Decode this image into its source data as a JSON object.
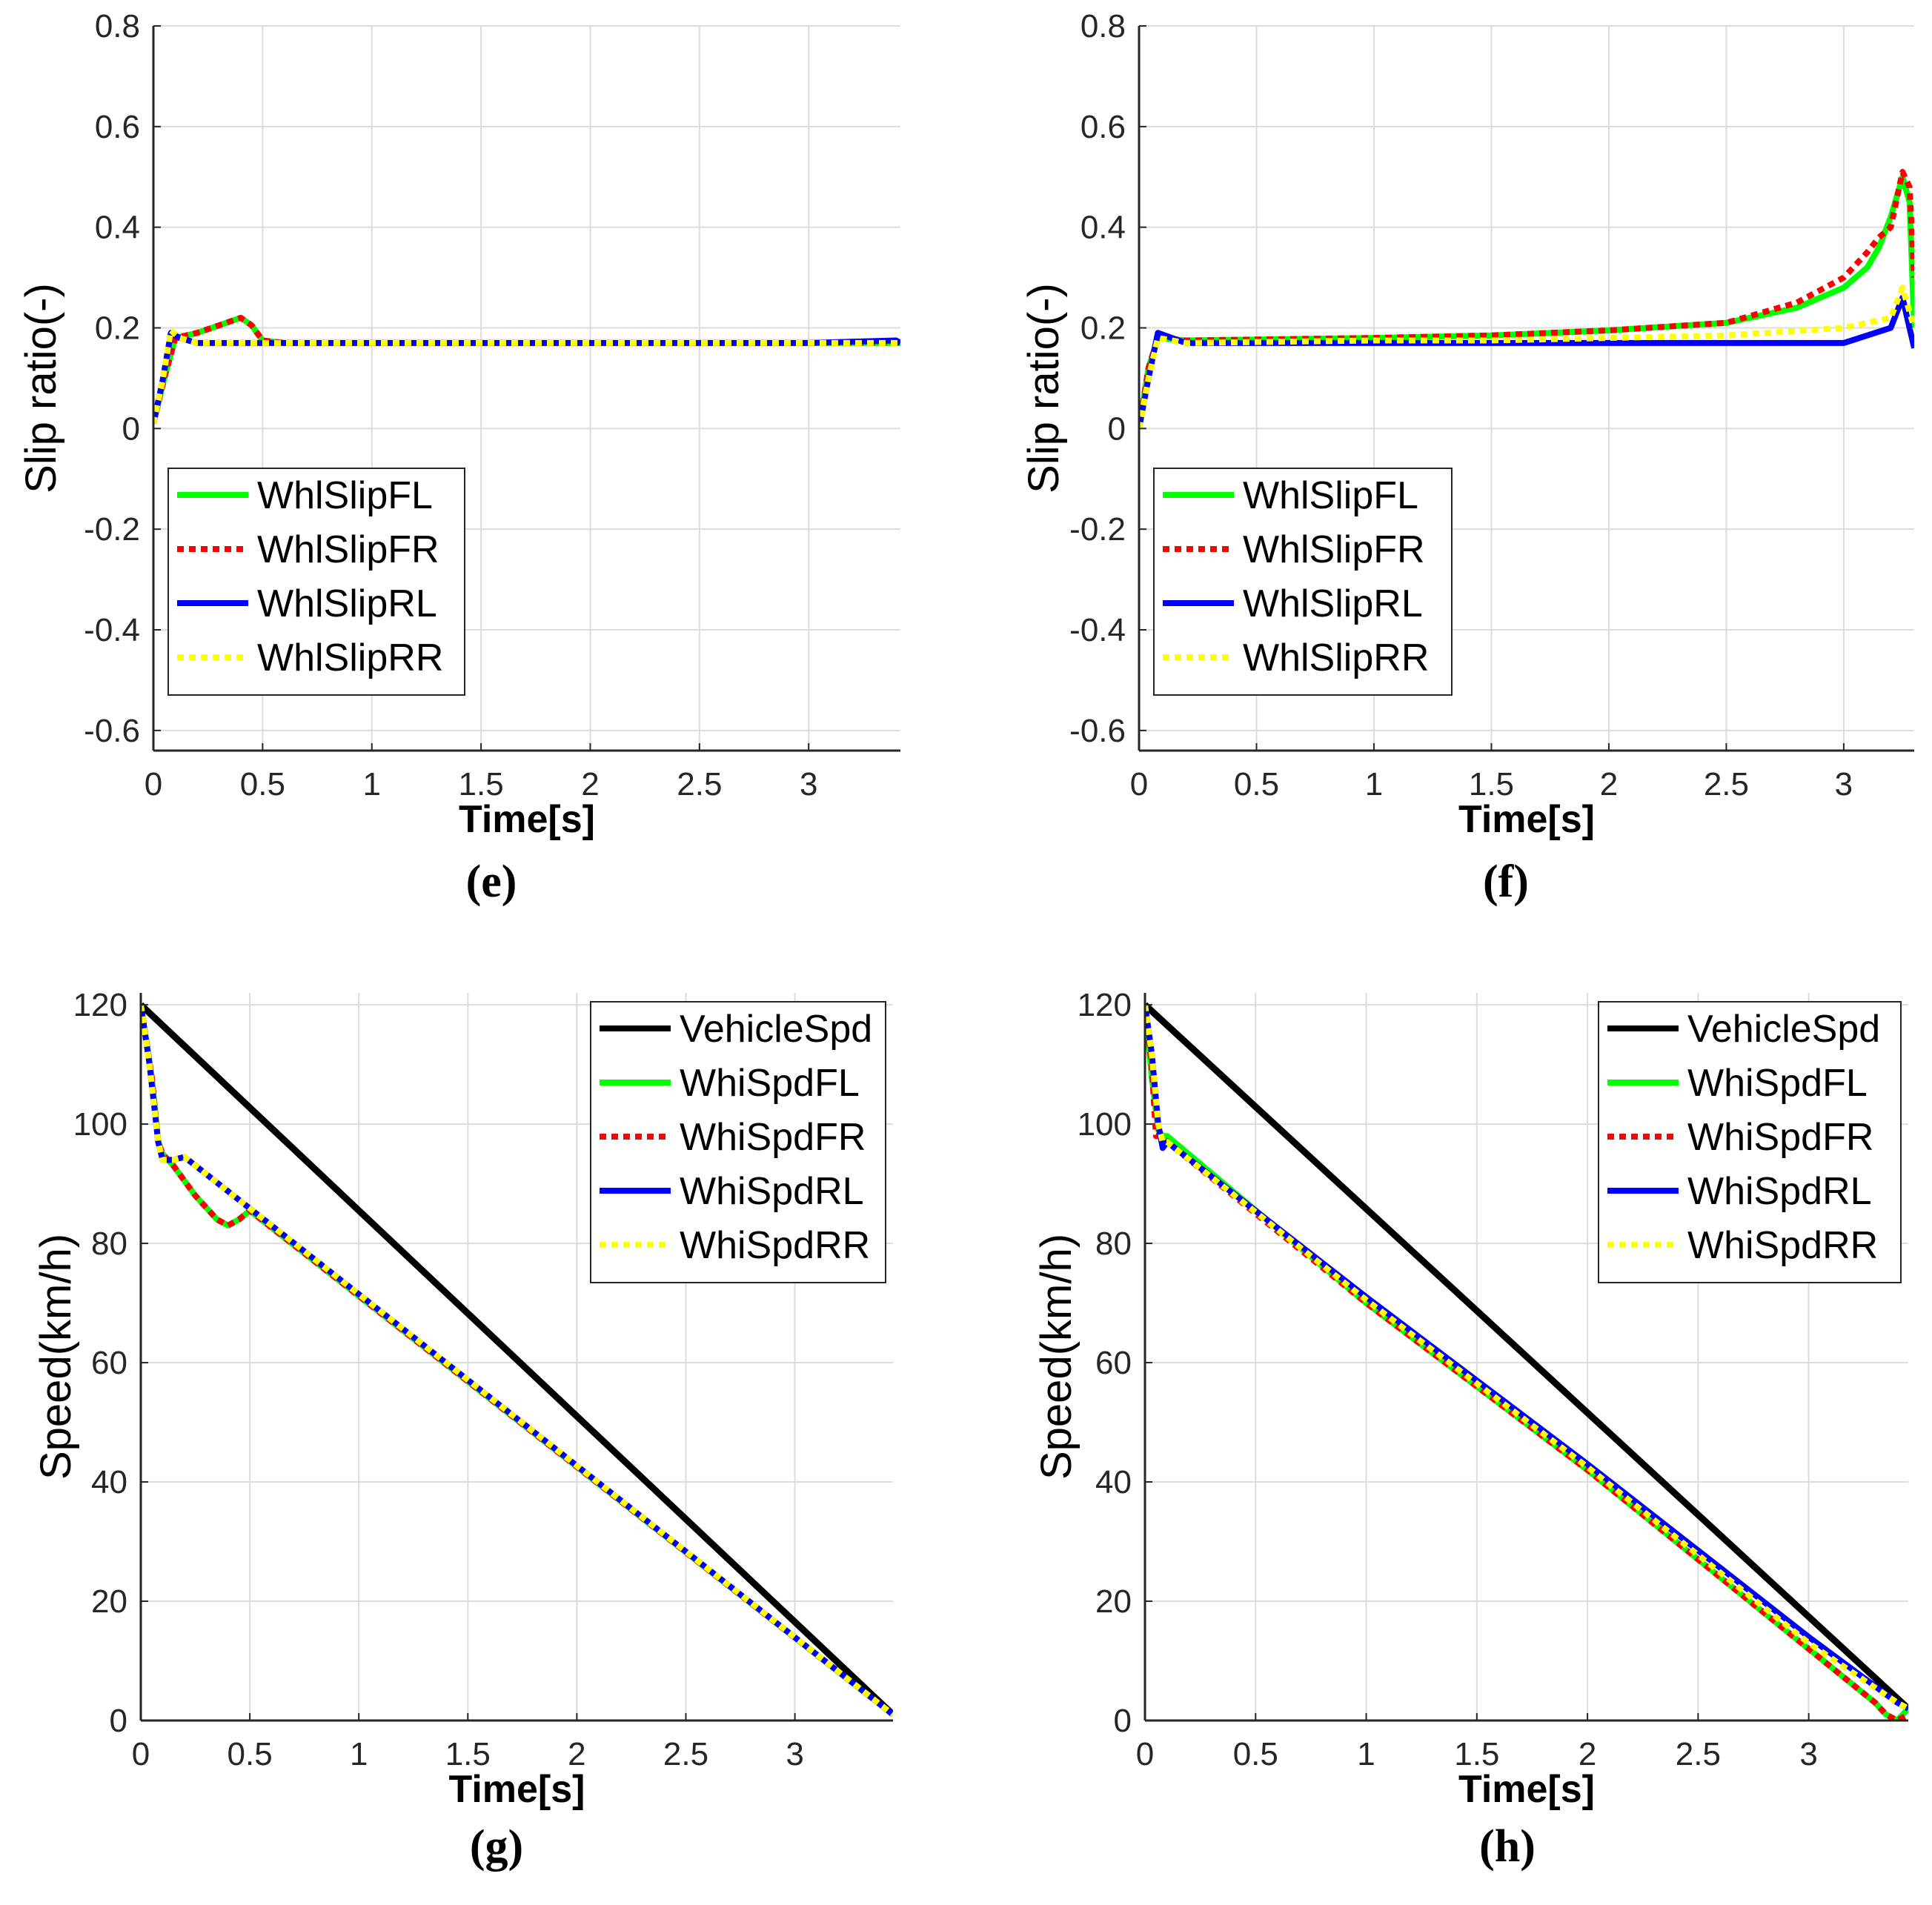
{
  "colors": {
    "FL": "#00ff00",
    "FR": "#ff0000",
    "RL": "#0000ff",
    "RR": "#ffff00",
    "Vehicle": "#000000"
  },
  "chart_data": [
    {
      "id": "e",
      "type": "line",
      "caption": "(e)",
      "xlabel": "Time[s]",
      "ylabel": "Slip ratio(-)",
      "xlim": [
        0,
        3.42
      ],
      "ylim": [
        -0.64,
        0.8
      ],
      "xticks": [
        0,
        0.5,
        1,
        1.5,
        2,
        2.5,
        3
      ],
      "xtick_labels": [
        "0",
        "0.5",
        "1",
        "1.5",
        "2",
        "2.5",
        "3"
      ],
      "yticks": [
        -0.6,
        -0.4,
        -0.2,
        0,
        0.2,
        0.4,
        0.6,
        0.8
      ],
      "ytick_labels": [
        "-0.6",
        "-0.4",
        "-0.2",
        "0",
        "0.2",
        "0.4",
        "0.6",
        "0.8"
      ],
      "legend_position": "bottom-left",
      "series": [
        {
          "name": "WhlSlipFL",
          "key": "FL",
          "style": "solid",
          "x": [
            0,
            0.05,
            0.1,
            0.2,
            0.3,
            0.4,
            0.45,
            0.5,
            0.6,
            1,
            2,
            3,
            3.42
          ],
          "y": [
            0.01,
            0.1,
            0.18,
            0.19,
            0.205,
            0.22,
            0.205,
            0.175,
            0.17,
            0.17,
            0.17,
            0.17,
            0.17
          ]
        },
        {
          "name": "WhlSlipFR",
          "key": "FR",
          "style": "dotted",
          "x": [
            0,
            0.05,
            0.1,
            0.2,
            0.3,
            0.4,
            0.45,
            0.5,
            0.6,
            1,
            2,
            3,
            3.42
          ],
          "y": [
            0.01,
            0.1,
            0.18,
            0.19,
            0.205,
            0.22,
            0.205,
            0.175,
            0.17,
            0.17,
            0.17,
            0.17,
            0.17
          ]
        },
        {
          "name": "WhlSlipRL",
          "key": "RL",
          "style": "solid",
          "x": [
            0,
            0.04,
            0.08,
            0.12,
            0.2,
            0.3,
            1,
            2,
            3,
            3.4,
            3.42
          ],
          "y": [
            0.01,
            0.09,
            0.19,
            0.18,
            0.17,
            0.17,
            0.17,
            0.17,
            0.17,
            0.175,
            0.17
          ]
        },
        {
          "name": "WhlSlipRR",
          "key": "RR",
          "style": "dotted",
          "x": [
            0,
            0.04,
            0.08,
            0.12,
            0.2,
            0.3,
            1,
            2,
            3,
            3.42
          ],
          "y": [
            0.01,
            0.09,
            0.195,
            0.18,
            0.17,
            0.17,
            0.17,
            0.17,
            0.17,
            0.17
          ]
        }
      ]
    },
    {
      "id": "f",
      "type": "line",
      "caption": "(f)",
      "xlabel": "Time[s]",
      "ylabel": "Slip ratio(-)",
      "xlim": [
        0,
        3.3
      ],
      "ylim": [
        -0.64,
        0.8
      ],
      "xticks": [
        0,
        0.5,
        1,
        1.5,
        2,
        2.5,
        3
      ],
      "xtick_labels": [
        "0",
        "0.5",
        "1",
        "1.5",
        "2",
        "2.5",
        "3"
      ],
      "yticks": [
        -0.6,
        -0.4,
        -0.2,
        0,
        0.2,
        0.4,
        0.6,
        0.8
      ],
      "ytick_labels": [
        "-0.6",
        "-0.4",
        "-0.2",
        "0",
        "0.2",
        "0.4",
        "0.6",
        "0.8"
      ],
      "legend_position": "bottom-left",
      "series": [
        {
          "name": "WhlSlipFL",
          "key": "FL",
          "style": "solid",
          "x": [
            0,
            0.04,
            0.08,
            0.2,
            1,
            1.5,
            2,
            2.5,
            2.8,
            3,
            3.1,
            3.15,
            3.2,
            3.25,
            3.28,
            3.3
          ],
          "y": [
            0,
            0.12,
            0.18,
            0.175,
            0.18,
            0.185,
            0.195,
            0.21,
            0.24,
            0.28,
            0.32,
            0.36,
            0.42,
            0.5,
            0.45,
            0.2
          ]
        },
        {
          "name": "WhlSlipFR",
          "key": "FR",
          "style": "dotted",
          "x": [
            0,
            0.04,
            0.08,
            0.2,
            1,
            1.5,
            2,
            2.5,
            2.8,
            3,
            3.1,
            3.15,
            3.2,
            3.25,
            3.28,
            3.3
          ],
          "y": [
            0,
            0.12,
            0.18,
            0.175,
            0.18,
            0.185,
            0.195,
            0.21,
            0.25,
            0.3,
            0.35,
            0.38,
            0.4,
            0.51,
            0.48,
            0.3
          ]
        },
        {
          "name": "WhlSlipRL",
          "key": "RL",
          "style": "solid",
          "x": [
            0,
            0.04,
            0.08,
            0.2,
            1,
            1.5,
            2,
            2.5,
            3,
            3.2,
            3.25,
            3.3
          ],
          "y": [
            0,
            0.1,
            0.19,
            0.17,
            0.17,
            0.17,
            0.17,
            0.17,
            0.17,
            0.2,
            0.26,
            0.16
          ]
        },
        {
          "name": "WhlSlipRR",
          "key": "RR",
          "style": "dotted",
          "x": [
            0,
            0.04,
            0.08,
            0.2,
            1,
            1.5,
            2,
            2.5,
            3,
            3.2,
            3.25,
            3.3
          ],
          "y": [
            0,
            0.1,
            0.18,
            0.17,
            0.175,
            0.175,
            0.18,
            0.185,
            0.2,
            0.22,
            0.28,
            0.2
          ]
        }
      ]
    },
    {
      "id": "g",
      "type": "line",
      "caption": "(g)",
      "xlabel": "Time[s]",
      "ylabel": "Speed(km/h)",
      "xlim": [
        0,
        3.45
      ],
      "ylim": [
        0,
        122
      ],
      "xticks": [
        0,
        0.5,
        1,
        1.5,
        2,
        2.5,
        3
      ],
      "xtick_labels": [
        "0",
        "0.5",
        "1",
        "1.5",
        "2",
        "2.5",
        "3"
      ],
      "yticks": [
        0,
        20,
        40,
        60,
        80,
        100,
        120
      ],
      "ytick_labels": [
        "0",
        "20",
        "40",
        "60",
        "80",
        "100",
        "120"
      ],
      "legend_position": "top-right",
      "series": [
        {
          "name": "VehicleSpd",
          "key": "Vehicle",
          "style": "solid",
          "x": [
            0,
            3.45
          ],
          "y": [
            120,
            1
          ]
        },
        {
          "name": "WhiSpdFL",
          "key": "FL",
          "style": "solid",
          "x": [
            0,
            0.05,
            0.08,
            0.1,
            0.15,
            0.25,
            0.35,
            0.4,
            0.45,
            0.5,
            3.45
          ],
          "y": [
            120,
            108,
            97,
            95,
            93,
            88,
            84,
            83,
            84,
            85.5,
            1
          ]
        },
        {
          "name": "WhiSpdFR",
          "key": "FR",
          "style": "dotted",
          "x": [
            0,
            0.05,
            0.08,
            0.1,
            0.15,
            0.25,
            0.35,
            0.4,
            0.45,
            0.5,
            3.45
          ],
          "y": [
            120,
            108,
            97,
            95,
            93,
            88,
            84,
            83,
            84,
            85.5,
            1
          ]
        },
        {
          "name": "WhiSpdRL",
          "key": "RL",
          "style": "solid",
          "x": [
            0,
            0.04,
            0.08,
            0.1,
            0.15,
            0.2,
            3.45
          ],
          "y": [
            120,
            110,
            97,
            94,
            94,
            94.5,
            1
          ]
        },
        {
          "name": "WhiSpdRR",
          "key": "RR",
          "style": "dotted",
          "x": [
            0,
            0.04,
            0.08,
            0.1,
            0.15,
            0.2,
            3.45
          ],
          "y": [
            120,
            110,
            97,
            94,
            94,
            94.5,
            1
          ]
        }
      ]
    },
    {
      "id": "h",
      "type": "line",
      "caption": "(h)",
      "xlabel": "Time[s]",
      "ylabel": "Speed(km/h)",
      "xlim": [
        0,
        3.45
      ],
      "ylim": [
        0,
        122
      ],
      "xticks": [
        0,
        0.5,
        1,
        1.5,
        2,
        2.5,
        3
      ],
      "xtick_labels": [
        "0",
        "0.5",
        "1",
        "1.5",
        "2",
        "2.5",
        "3"
      ],
      "yticks": [
        0,
        20,
        40,
        60,
        80,
        100,
        120
      ],
      "ytick_labels": [
        "0",
        "20",
        "40",
        "60",
        "80",
        "100",
        "120"
      ],
      "legend_position": "top-right",
      "series": [
        {
          "name": "VehicleSpd",
          "key": "Vehicle",
          "style": "solid",
          "x": [
            0,
            3.45
          ],
          "y": [
            120,
            2
          ]
        },
        {
          "name": "WhiSpdFL",
          "key": "FL",
          "style": "solid",
          "x": [
            0,
            0.03,
            0.06,
            0.08,
            0.1,
            1,
            2,
            3,
            3.3,
            3.35,
            3.4,
            3.45
          ],
          "y": [
            120,
            108,
            99,
            98,
            98,
            70,
            42,
            12,
            3,
            1,
            0,
            2
          ]
        },
        {
          "name": "WhiSpdFR",
          "key": "FR",
          "style": "dotted",
          "x": [
            0,
            0.03,
            0.05,
            0.07,
            0.1,
            1,
            2,
            3,
            3.3,
            3.35,
            3.4,
            3.45
          ],
          "y": [
            120,
            110,
            98,
            98,
            97,
            70,
            42,
            12,
            3,
            1,
            0,
            1
          ]
        },
        {
          "name": "WhiSpdRL",
          "key": "RL",
          "style": "solid",
          "x": [
            0,
            0.03,
            0.06,
            0.08,
            0.1,
            1,
            2,
            3,
            3.4,
            3.45
          ],
          "y": [
            120,
            112,
            100,
            96,
            97,
            71,
            43,
            14,
            3,
            2
          ]
        },
        {
          "name": "WhiSpdRR",
          "key": "RR",
          "style": "dotted",
          "x": [
            0,
            0.03,
            0.06,
            0.08,
            0.1,
            1,
            2,
            3,
            3.4,
            3.45
          ],
          "y": [
            120,
            112,
            100,
            97,
            97,
            70.5,
            42.5,
            13,
            3,
            2
          ]
        }
      ]
    }
  ]
}
